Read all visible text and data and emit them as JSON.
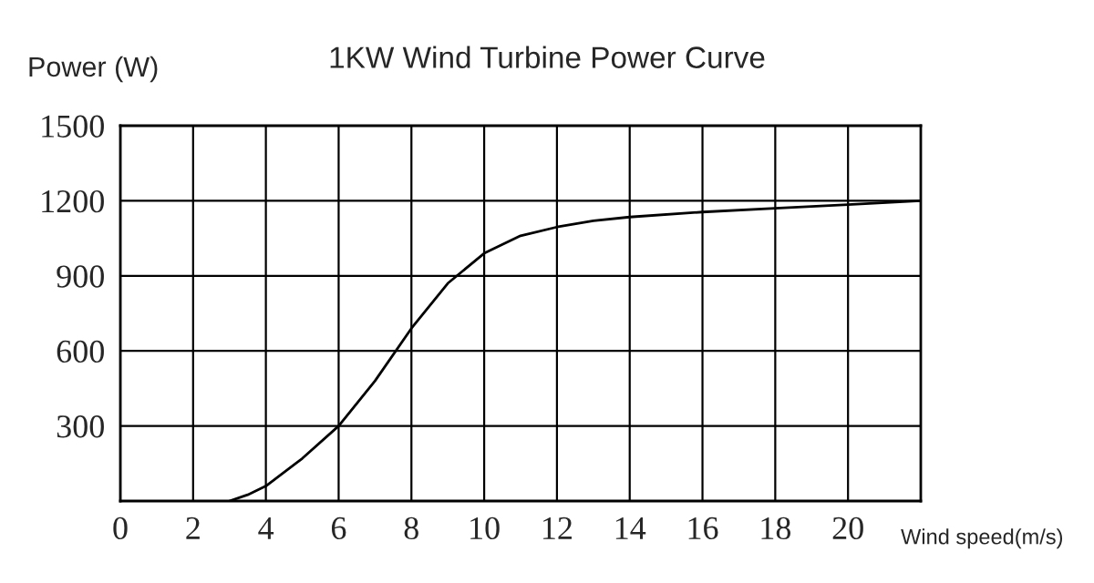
{
  "chart_data": {
    "type": "line",
    "title": "1KW Wind Turbine Power Curve",
    "ylabel": "Power (W)",
    "xlabel": "Wind speed(m/s)",
    "x": [
      3,
      3.5,
      4,
      5,
      6,
      7,
      8,
      9,
      10,
      11,
      12,
      13,
      14,
      16,
      18,
      20,
      22
    ],
    "series": [
      {
        "color": "#000000",
        "values": [
          0,
          25,
          60,
          170,
          300,
          480,
          690,
          870,
          990,
          1060,
          1095,
          1120,
          1135,
          1155,
          1170,
          1185,
          1200
        ]
      }
    ],
    "xlim": [
      0,
      22
    ],
    "xticks": [
      0,
      2,
      4,
      6,
      8,
      10,
      12,
      14,
      16,
      18,
      20
    ],
    "ylim": [
      0,
      1500
    ],
    "yticks": [
      {
        "value": 0,
        "label": null
      },
      300,
      600,
      900,
      1200,
      1500
    ],
    "grid": true
  }
}
